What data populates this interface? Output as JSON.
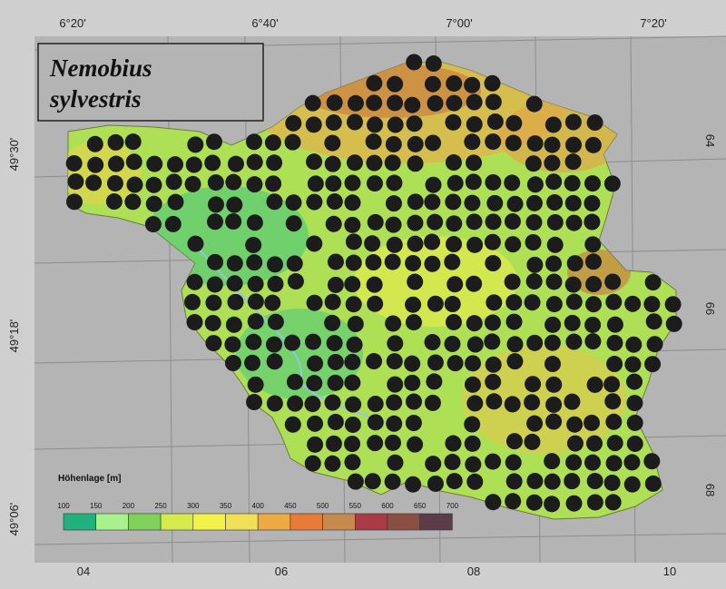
{
  "map": {
    "title_line1": "Nemobius",
    "title_line2": "sylvestris",
    "longitude_labels": [
      "6°20'",
      "6°40'",
      "7°00'",
      "7°20'"
    ],
    "latitude_labels": [
      "49°30'",
      "49°18'",
      "49°06'"
    ],
    "grid_bottom_labels": [
      "04",
      "06",
      "08",
      "10"
    ],
    "grid_right_labels": [
      "64",
      "66",
      "68"
    ],
    "legend": {
      "title": "Höhenlage [m]",
      "ticks": [
        "100",
        "150",
        "200",
        "250",
        "300",
        "350",
        "400",
        "450",
        "500",
        "550",
        "600",
        "650",
        "700"
      ],
      "colors": [
        "#1fb27e",
        "#a9f08e",
        "#7fd15a",
        "#d5ea4c",
        "#f2f24a",
        "#f2df58",
        "#eda942",
        "#e97b38",
        "#c58a4c",
        "#a93b47",
        "#8a4f42",
        "#5b3d4a"
      ]
    },
    "colors": {
      "background": "#cfcfcf",
      "map_frame": "#b4b4b4",
      "region_base": "#aee055",
      "dot": "#1c1c1c"
    }
  }
}
